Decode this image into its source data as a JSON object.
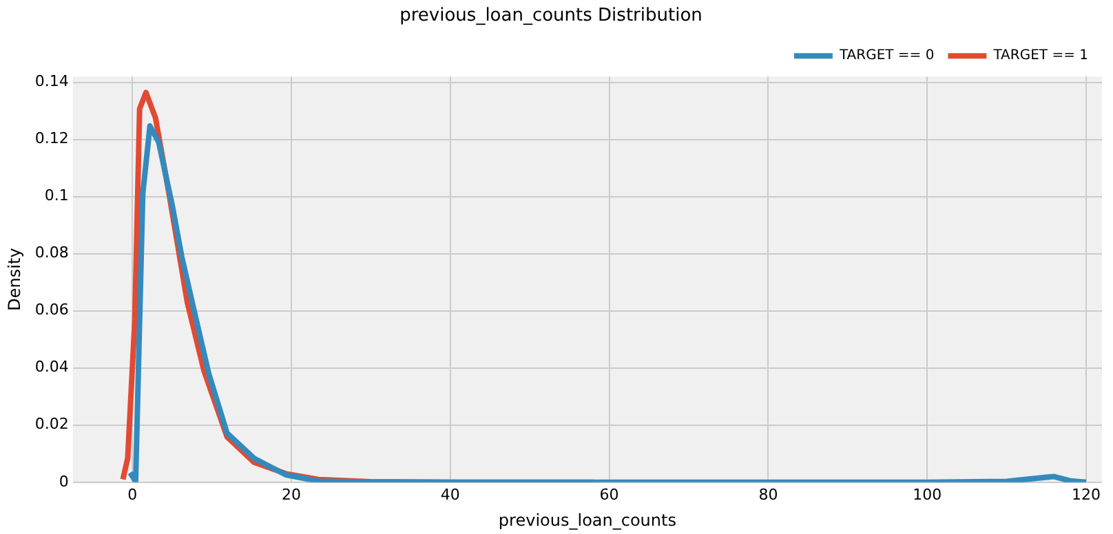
{
  "chart_data": {
    "type": "line",
    "title": "previous_loan_counts Distribution",
    "xlabel": "previous_loan_counts",
    "ylabel": "Density",
    "xlim": [
      -7.5,
      122
    ],
    "xticks": [
      0,
      20,
      40,
      60,
      80,
      100,
      120
    ],
    "ylim": [
      0,
      0.142
    ],
    "yticks": [
      0,
      0.02,
      0.04,
      0.06,
      0.08,
      0.1,
      0.12,
      0.14
    ],
    "grid": true,
    "legend": "top right",
    "marker": "none",
    "line_style": "solid",
    "series": [
      {
        "name": "TARGET == 0",
        "color": "#348abd",
        "x": [
          -0.3,
          0.4,
          1.3,
          2.2,
          3.3,
          5.0,
          6.2,
          7.9,
          9.6,
          11.9,
          15.3,
          19.3,
          23.4,
          30,
          40,
          60,
          80,
          100,
          110,
          115.9,
          118,
          120
        ],
        "values": [
          0.0033,
          0.0004,
          0.101,
          0.1247,
          0.119,
          0.097,
          0.079,
          0.0584,
          0.038,
          0.0172,
          0.0084,
          0.0026,
          0.0004,
          0.0001,
          0,
          0,
          0,
          0,
          0.0003,
          0.002,
          0.0005,
          0
        ]
      },
      {
        "name": "TARGET == 1",
        "color": "#e24a33",
        "x": [
          -1.2,
          -0.6,
          0.3,
          0.9,
          1.7,
          2.9,
          4.6,
          6.9,
          9.0,
          11.9,
          15.3,
          19.3,
          23.4,
          30,
          40,
          58
        ],
        "values": [
          0.001,
          0.0084,
          0.057,
          0.1307,
          0.1364,
          0.1275,
          0.101,
          0.063,
          0.039,
          0.0159,
          0.007,
          0.003,
          0.001,
          0.0002,
          0,
          0
        ]
      }
    ]
  }
}
